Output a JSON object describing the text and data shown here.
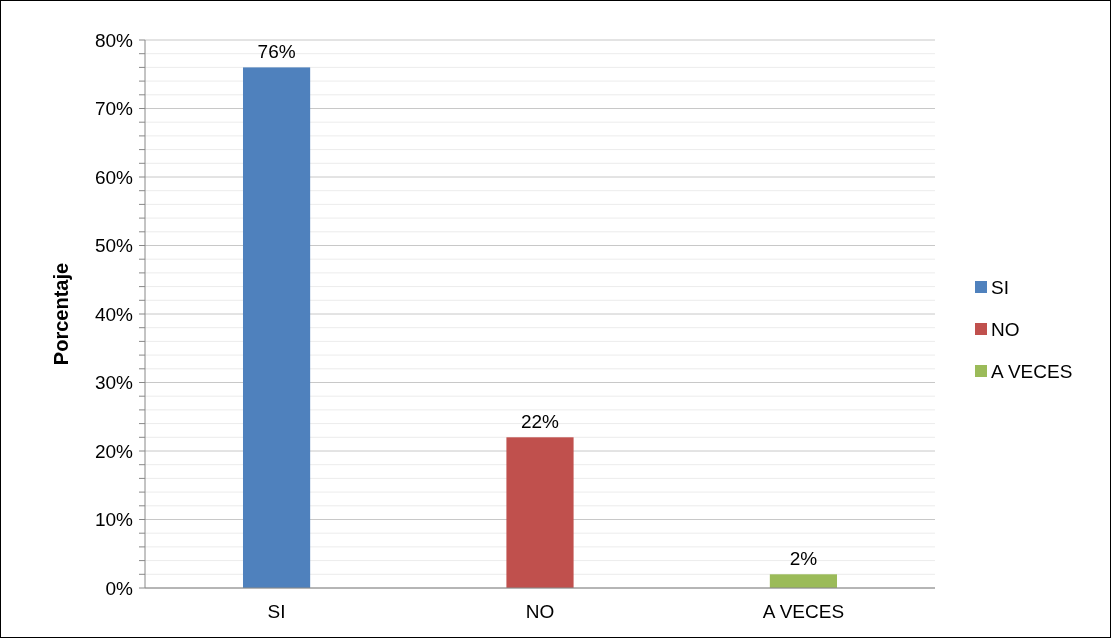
{
  "chart_data": {
    "type": "bar",
    "ylabel": "Porcentaje",
    "categories": [
      "SI",
      "NO",
      "A VECES"
    ],
    "series": [
      {
        "name": "SI",
        "color": "#4f81bd",
        "values": [
          76,
          null,
          null
        ],
        "value_labels": [
          "76%",
          null,
          null
        ]
      },
      {
        "name": "NO",
        "color": "#c0504d",
        "values": [
          null,
          22,
          null
        ],
        "value_labels": [
          null,
          "22%",
          null
        ]
      },
      {
        "name": "A VECES",
        "color": "#9bbb59",
        "values": [
          null,
          null,
          2
        ],
        "value_labels": [
          null,
          null,
          "2%"
        ]
      }
    ],
    "ylim": [
      0,
      80
    ],
    "yticks": [
      {
        "value": 0,
        "label": "0%"
      },
      {
        "value": 2,
        "label": null
      },
      {
        "value": 4,
        "label": null
      },
      {
        "value": 6,
        "label": null
      },
      {
        "value": 8,
        "label": null
      },
      {
        "value": 10,
        "label": "10%"
      },
      {
        "value": 12,
        "label": null
      },
      {
        "value": 14,
        "label": null
      },
      {
        "value": 16,
        "label": null
      },
      {
        "value": 18,
        "label": null
      },
      {
        "value": 20,
        "label": "20%"
      },
      {
        "value": 22,
        "label": null
      },
      {
        "value": 24,
        "label": null
      },
      {
        "value": 26,
        "label": null
      },
      {
        "value": 28,
        "label": null
      },
      {
        "value": 30,
        "label": "30%"
      },
      {
        "value": 32,
        "label": null
      },
      {
        "value": 34,
        "label": null
      },
      {
        "value": 36,
        "label": null
      },
      {
        "value": 38,
        "label": null
      },
      {
        "value": 40,
        "label": "40%"
      },
      {
        "value": 42,
        "label": null
      },
      {
        "value": 44,
        "label": null
      },
      {
        "value": 46,
        "label": null
      },
      {
        "value": 48,
        "label": null
      },
      {
        "value": 50,
        "label": "50%"
      },
      {
        "value": 52,
        "label": null
      },
      {
        "value": 54,
        "label": null
      },
      {
        "value": 56,
        "label": null
      },
      {
        "value": 58,
        "label": null
      },
      {
        "value": 60,
        "label": "60%"
      },
      {
        "value": 62,
        "label": null
      },
      {
        "value": 64,
        "label": null
      },
      {
        "value": 66,
        "label": null
      },
      {
        "value": 68,
        "label": null
      },
      {
        "value": 70,
        "label": "70%"
      },
      {
        "value": 72,
        "label": null
      },
      {
        "value": 74,
        "label": null
      },
      {
        "value": 76,
        "label": null
      },
      {
        "value": 78,
        "label": null
      },
      {
        "value": 80,
        "label": "80%"
      }
    ],
    "grid": true,
    "legend": "right"
  }
}
